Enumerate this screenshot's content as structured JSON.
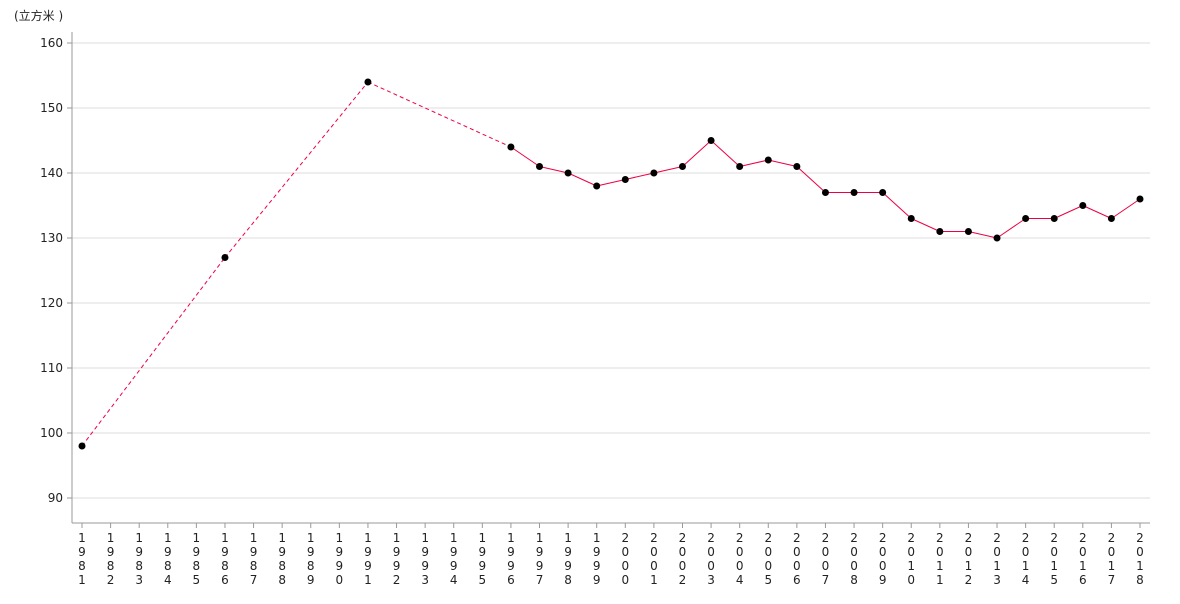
{
  "chart_data": {
    "type": "line",
    "unit_label": "(立方米 )",
    "ylim": [
      86,
      162
    ],
    "yticks": [
      90,
      100,
      110,
      120,
      130,
      140,
      150,
      160
    ],
    "grid": true,
    "categories": [
      "1981",
      "1982",
      "1983",
      "1984",
      "1985",
      "1986",
      "1987",
      "1988",
      "1989",
      "1990",
      "1991",
      "1992",
      "1993",
      "1994",
      "1995",
      "1996",
      "1997",
      "1998",
      "1999",
      "2000",
      "2001",
      "2002",
      "2003",
      "2004",
      "2005",
      "2006",
      "2007",
      "2008",
      "2009",
      "2010",
      "2011",
      "2012",
      "2013",
      "2014",
      "2015",
      "2016",
      "2017",
      "2018"
    ],
    "series": [
      {
        "color": "#ee0044",
        "marker_color": "#000000",
        "points": [
          {
            "x": "1981",
            "y": 98
          },
          {
            "x": "1986",
            "y": 127
          },
          {
            "x": "1991",
            "y": 154
          },
          {
            "x": "1996",
            "y": 144
          },
          {
            "x": "1997",
            "y": 141
          },
          {
            "x": "1998",
            "y": 140
          },
          {
            "x": "1999",
            "y": 138
          },
          {
            "x": "2000",
            "y": 139
          },
          {
            "x": "2001",
            "y": 140
          },
          {
            "x": "2002",
            "y": 141
          },
          {
            "x": "2003",
            "y": 145
          },
          {
            "x": "2004",
            "y": 141
          },
          {
            "x": "2005",
            "y": 142
          },
          {
            "x": "2006",
            "y": 141
          },
          {
            "x": "2007",
            "y": 137
          },
          {
            "x": "2008",
            "y": 137
          },
          {
            "x": "2009",
            "y": 137
          },
          {
            "x": "2010",
            "y": 133
          },
          {
            "x": "2011",
            "y": 131
          },
          {
            "x": "2012",
            "y": 131
          },
          {
            "x": "2013",
            "y": 130
          },
          {
            "x": "2014",
            "y": 133
          },
          {
            "x": "2015",
            "y": 133
          },
          {
            "x": "2016",
            "y": 135
          },
          {
            "x": "2017",
            "y": 133
          },
          {
            "x": "2018",
            "y": 136
          }
        ]
      }
    ]
  }
}
